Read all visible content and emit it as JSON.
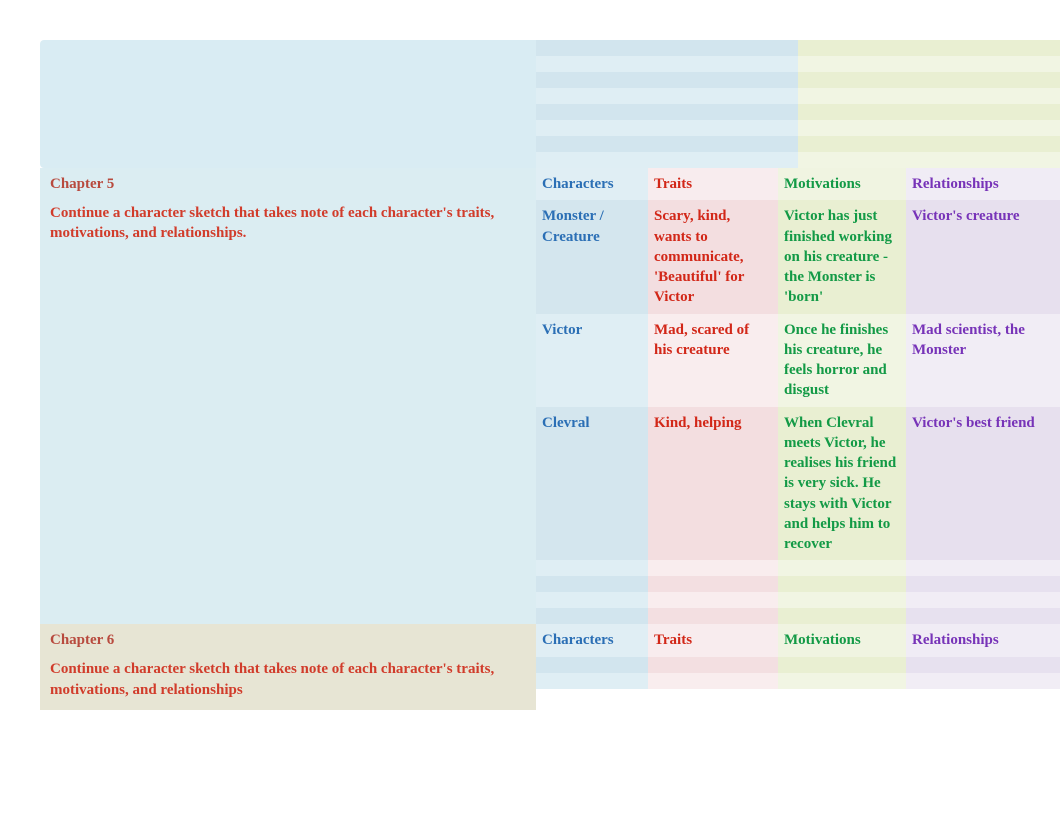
{
  "colors": {
    "characters_text": "#2b6fb5",
    "traits_text": "#d22718",
    "motivations_text": "#139a46",
    "relationships_text": "#7733b8",
    "chapter_title": "#b84a3e",
    "chapter_desc": "#d13c2b",
    "bg_blue": "#d4e6ee",
    "bg_pink": "#f3dee0",
    "bg_green": "#e9efd2",
    "bg_purple": "#e7e0ee",
    "bg_left_blue": "#dbedf2",
    "bg_left_tan": "#e7e5d4"
  },
  "headers": {
    "characters": "Characters",
    "traits": "Traits",
    "motivations": "Motivations",
    "relationships": "Relationships"
  },
  "chapter5": {
    "title": "Chapter 5",
    "description": " Continue a character sketch that takes note of each character's traits, motivations, and relationships.",
    "rows": [
      {
        "character": "Monster / Creature",
        "traits": "Scary, kind, wants to communicate, 'Beautiful' for Victor",
        "motivations": "Victor has just finished working on his creature - the Monster is 'born'",
        "relationships": "Victor's creature"
      },
      {
        "character": "Victor",
        "traits": "Mad, scared of his creature",
        "motivations": "Once he finishes his creature, he feels horror and disgust",
        "relationships": "Mad scientist, the Monster"
      },
      {
        "character": "Clevral",
        "traits": "Kind, helping",
        "motivations": "When Clevral meets Victor, he realises his friend is very sick. He stays with Victor and helps him to recover",
        "relationships": "Victor's best friend"
      }
    ]
  },
  "chapter6": {
    "title": "Chapter 6",
    "description": " Continue a character sketch that takes note of each character's traits, motivations, and relationships"
  }
}
